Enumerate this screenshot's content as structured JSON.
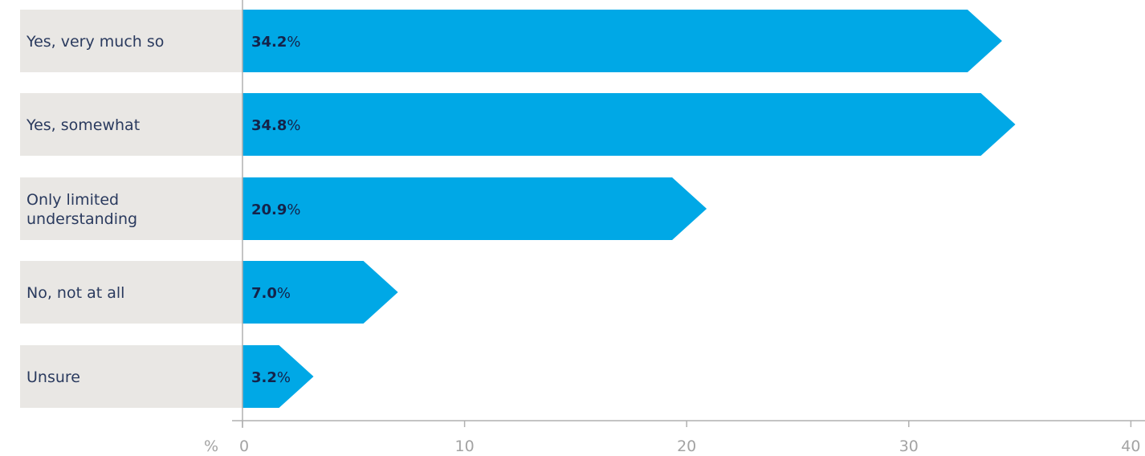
{
  "chart_data": {
    "type": "bar",
    "orientation": "horizontal",
    "categories": [
      [
        "Yes, very much so"
      ],
      [
        "Yes, somewhat"
      ],
      [
        "Only limited",
        "understanding"
      ],
      [
        "No, not at all"
      ],
      [
        "Unsure"
      ]
    ],
    "values": [
      34.2,
      34.8,
      20.9,
      7.0,
      3.2
    ],
    "value_labels": [
      "34.2",
      "34.8",
      "20.9",
      "7.0",
      "3.2"
    ],
    "value_suffix": "%",
    "xlim": [
      0,
      40
    ],
    "ticks": [
      0,
      10,
      20,
      30,
      40
    ],
    "axis_unit_label": "%",
    "title": "",
    "xlabel": "",
    "ylabel": "",
    "grid": false,
    "colors": {
      "bar": "#00a8e6",
      "label_band": "#e9e7e4",
      "axis": "#b0b0b0"
    }
  }
}
